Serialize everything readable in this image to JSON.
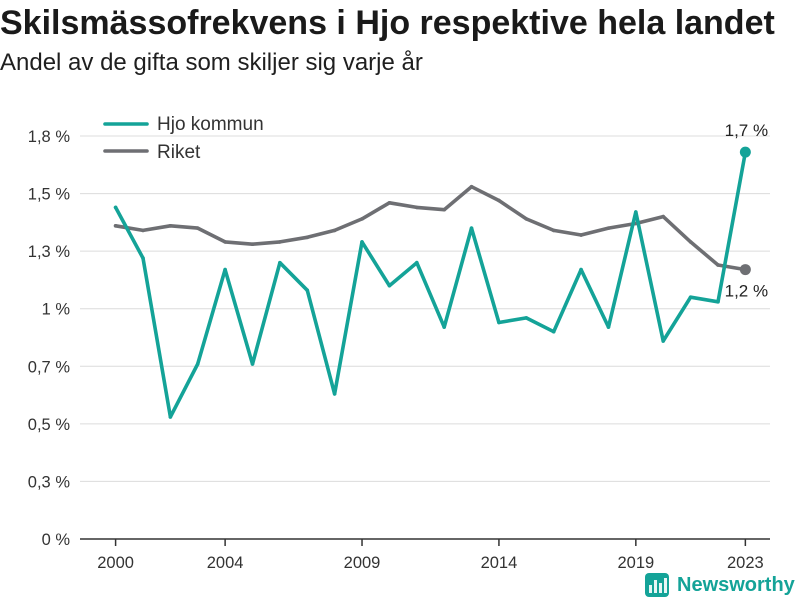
{
  "chart_data": {
    "type": "line",
    "title": "Skilsmässofrekvens i Hjo respektive hela landet",
    "subtitle": "Andel av de gifta som skiljer sig varje år",
    "xlabel": "",
    "ylabel": "",
    "x": [
      2000,
      2001,
      2002,
      2003,
      2004,
      2005,
      2006,
      2007,
      2008,
      2009,
      2010,
      2011,
      2012,
      2013,
      2014,
      2015,
      2016,
      2017,
      2018,
      2019,
      2020,
      2021,
      2022,
      2023
    ],
    "x_ticks": [
      2000,
      2004,
      2009,
      2014,
      2019,
      2023
    ],
    "x_tick_labels": [
      "2000",
      "2004",
      "2009",
      "2014",
      "2019",
      "2023"
    ],
    "xlim": [
      1998.7,
      2023.9
    ],
    "y_ticks": [
      0,
      0.25,
      0.5,
      0.75,
      1,
      1.25,
      1.5,
      1.75
    ],
    "y_tick_labels": [
      "0 %",
      "0,3 %",
      "0,5 %",
      "0,7 %",
      "1 %",
      "1,3 %",
      "1,5 %",
      "1,8 %"
    ],
    "ylim": [
      0,
      1.75
    ],
    "grid": "horizontal",
    "legend": "top-left",
    "series": [
      {
        "name": "Hjo kommun",
        "color": "#14a398",
        "values": [
          1.44,
          1.22,
          0.53,
          0.76,
          1.17,
          0.76,
          1.2,
          1.08,
          0.63,
          1.29,
          1.1,
          1.2,
          0.92,
          1.35,
          0.94,
          0.96,
          0.9,
          1.17,
          0.92,
          1.42,
          0.86,
          1.05,
          1.03,
          1.68
        ],
        "end_label": "1,7 %"
      },
      {
        "name": "Riket",
        "color": "#6e6f73",
        "values": [
          1.36,
          1.34,
          1.36,
          1.35,
          1.29,
          1.28,
          1.29,
          1.31,
          1.34,
          1.39,
          1.46,
          1.44,
          1.43,
          1.53,
          1.47,
          1.39,
          1.34,
          1.32,
          1.35,
          1.37,
          1.4,
          1.29,
          1.19,
          1.17
        ],
        "end_label": "1,2 %"
      }
    ]
  },
  "brand": {
    "name": "Newsworthy",
    "icon": "newsworthy-logo-icon",
    "color": "#14a398"
  }
}
